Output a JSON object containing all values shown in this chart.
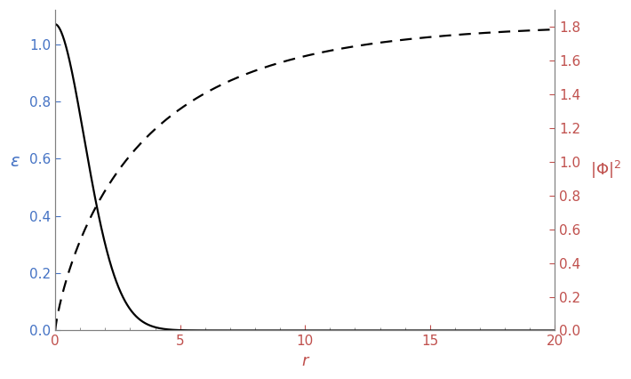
{
  "title": "",
  "xlabel": "r",
  "ylabel_left": "ε",
  "ylabel_right": "|Φ|^2",
  "xlim": [
    0,
    20
  ],
  "ylim_left": [
    0,
    1.12
  ],
  "ylim_right": [
    0,
    1.9
  ],
  "xticks": [
    0,
    5,
    10,
    15,
    20
  ],
  "yticks_left": [
    0,
    0.2,
    0.4,
    0.6,
    0.8,
    1.0
  ],
  "yticks_right": [
    0,
    0.2,
    0.4,
    0.6,
    0.8,
    1.0,
    1.2,
    1.4,
    1.6,
    1.8
  ],
  "solid_color": "#000000",
  "dashed_color": "#000000",
  "spine_color": "#808080",
  "tick_color_left": "#4472c4",
  "tick_color_right": "#c0504d",
  "tick_color_x": "#c0504d",
  "ylabel_left_color": "#4472c4",
  "ylabel_right_color": "#c0504d",
  "xlabel_color": "#c0504d",
  "background_color": "#ffffff",
  "line_width": 1.6,
  "figsize": [
    7.1,
    4.26
  ],
  "dpi": 100,
  "eps_amplitude": 1.07,
  "eps_k": 0.55,
  "eps_alpha": 1.5,
  "phi_asymptote": 1.82,
  "phi_k": 0.55,
  "phi_alpha": 0.65
}
